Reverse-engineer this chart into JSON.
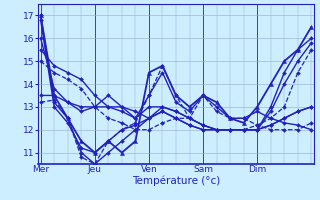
{
  "bg_color": "#cceeff",
  "line_color": "#2222bb",
  "grid_color": "#99aacc",
  "xlabel": "Température (°c)",
  "xlabel_color": "#2222bb",
  "tick_color": "#2222bb",
  "yticks": [
    11,
    12,
    13,
    14,
    15,
    16,
    17
  ],
  "ylim": [
    10.5,
    17.5
  ],
  "xtick_labels": [
    "Mer",
    "Jeu",
    "Ven",
    "Sam",
    "Dim"
  ],
  "xtick_positions": [
    0,
    24,
    48,
    72,
    96
  ],
  "xlim": [
    -1,
    121
  ],
  "series": [
    {
      "x": [
        0,
        6,
        12,
        18,
        24,
        30,
        36,
        42,
        48,
        54,
        60,
        66,
        72,
        78,
        84,
        90,
        96,
        102,
        108,
        114,
        120
      ],
      "y": [
        17.0,
        13.2,
        12.5,
        11.0,
        10.5,
        11.0,
        11.5,
        12.0,
        12.5,
        12.8,
        12.5,
        12.2,
        12.0,
        12.0,
        12.0,
        12.0,
        12.0,
        13.0,
        14.5,
        15.5,
        16.0
      ],
      "style": "-",
      "marker": "D",
      "ms": 2,
      "lw": 1.0
    },
    {
      "x": [
        0,
        6,
        12,
        18,
        24,
        30,
        36,
        42,
        48,
        54,
        60,
        66,
        72,
        78,
        84,
        90,
        96,
        102,
        108,
        114,
        120
      ],
      "y": [
        16.8,
        13.0,
        12.3,
        11.2,
        11.0,
        11.5,
        12.0,
        12.2,
        12.5,
        12.8,
        12.5,
        12.2,
        12.0,
        12.0,
        12.0,
        12.0,
        12.0,
        12.8,
        14.0,
        15.0,
        15.8
      ],
      "style": "-",
      "marker": "D",
      "ms": 2,
      "lw": 1.0
    },
    {
      "x": [
        0,
        6,
        12,
        18,
        24,
        30,
        36,
        42,
        48,
        54,
        60,
        66,
        72,
        78,
        84,
        90,
        96,
        102,
        108,
        114,
        120
      ],
      "y": [
        16.0,
        13.8,
        13.2,
        13.0,
        13.0,
        13.0,
        12.8,
        12.5,
        13.0,
        13.0,
        12.8,
        12.5,
        12.2,
        12.0,
        12.0,
        12.0,
        12.0,
        12.2,
        12.5,
        12.8,
        13.0
      ],
      "style": "-",
      "marker": "D",
      "ms": 2,
      "lw": 1.0
    },
    {
      "x": [
        0,
        6,
        12,
        18,
        24,
        30,
        36,
        42,
        48,
        54,
        60,
        66,
        72,
        78,
        84,
        90,
        96,
        102,
        108,
        114,
        120
      ],
      "y": [
        15.5,
        14.8,
        14.5,
        14.2,
        13.5,
        13.0,
        13.0,
        12.8,
        12.5,
        13.0,
        12.8,
        12.5,
        12.2,
        12.0,
        12.0,
        12.0,
        12.0,
        12.2,
        12.5,
        12.8,
        13.0
      ],
      "style": "-",
      "marker": "D",
      "ms": 2,
      "lw": 1.0
    },
    {
      "x": [
        0,
        6,
        12,
        18,
        24,
        30,
        36,
        42,
        48,
        54,
        60,
        66,
        72,
        78,
        84,
        90,
        96,
        102,
        108,
        114,
        120
      ],
      "y": [
        15.0,
        14.5,
        14.2,
        13.8,
        13.0,
        12.5,
        12.3,
        12.0,
        12.0,
        12.3,
        12.5,
        12.5,
        12.2,
        12.0,
        12.0,
        12.0,
        12.2,
        12.5,
        13.0,
        14.5,
        15.5
      ],
      "style": "--",
      "marker": "D",
      "ms": 2,
      "lw": 0.9
    },
    {
      "x": [
        0,
        6,
        12,
        18,
        24,
        30,
        36,
        42,
        48,
        54,
        60,
        66,
        72,
        78,
        84,
        90,
        96,
        102,
        108,
        114,
        120
      ],
      "y": [
        13.2,
        13.3,
        12.5,
        10.8,
        10.5,
        11.5,
        12.0,
        12.3,
        13.5,
        14.8,
        13.5,
        12.5,
        13.5,
        12.8,
        12.5,
        12.5,
        12.2,
        12.0,
        12.0,
        12.0,
        12.3
      ],
      "style": "--",
      "marker": "D",
      "ms": 2,
      "lw": 0.9
    },
    {
      "x": [
        0,
        6,
        12,
        18,
        24,
        30,
        36,
        42,
        48,
        54,
        60,
        66,
        72,
        78,
        84,
        90,
        96,
        102,
        108,
        114,
        120
      ],
      "y": [
        17.0,
        13.5,
        12.5,
        11.5,
        11.0,
        11.5,
        11.0,
        11.5,
        14.5,
        14.8,
        13.5,
        13.0,
        13.5,
        13.2,
        12.5,
        12.3,
        13.0,
        14.0,
        15.0,
        15.5,
        16.5
      ],
      "style": "-",
      "marker": "^",
      "ms": 3,
      "lw": 1.3
    },
    {
      "x": [
        0,
        6,
        12,
        18,
        24,
        30,
        36,
        42,
        48,
        54,
        60,
        66,
        72,
        78,
        84,
        90,
        96,
        102,
        108,
        114,
        120
      ],
      "y": [
        13.5,
        13.5,
        13.2,
        12.8,
        13.0,
        13.5,
        13.0,
        12.5,
        13.5,
        14.5,
        13.2,
        12.8,
        13.5,
        13.0,
        12.5,
        12.5,
        12.8,
        12.5,
        12.3,
        12.2,
        12.0
      ],
      "style": "-",
      "marker": "D",
      "ms": 2,
      "lw": 1.0
    }
  ]
}
